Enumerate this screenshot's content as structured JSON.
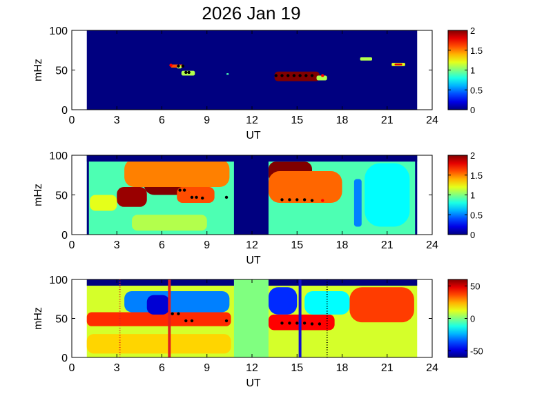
{
  "title": "2026 Jan 19",
  "chart_data": [
    {
      "type": "heatmap",
      "panel": 1,
      "xlabel": "UT",
      "ylabel": "mHz",
      "xlim": [
        0,
        24
      ],
      "ylim": [
        0,
        100
      ],
      "xticks": [
        0,
        3,
        6,
        9,
        12,
        15,
        18,
        21,
        24
      ],
      "yticks": [
        0,
        50,
        100
      ],
      "data_range_ut": [
        1.0,
        23.0
      ],
      "colorbar": {
        "min": 0,
        "max": 2,
        "ticks": [
          "0",
          "0.5",
          "1",
          "1.5",
          "2"
        ]
      },
      "background_value": 0,
      "blobs": [
        {
          "t0": 13.5,
          "t1": 16.5,
          "f0": 36,
          "f1": 48,
          "v": 2.0
        },
        {
          "t0": 13.6,
          "t1": 16.4,
          "f0": 38,
          "f1": 46,
          "v": 2.0
        },
        {
          "t0": 16.3,
          "t1": 17.0,
          "f0": 37,
          "f1": 43,
          "v": 1.1
        },
        {
          "t0": 7.3,
          "t1": 8.2,
          "f0": 43,
          "f1": 49,
          "v": 1.1
        },
        {
          "t0": 6.6,
          "t1": 7.4,
          "f0": 53,
          "f1": 57,
          "v": 1.6
        },
        {
          "t0": 7.0,
          "t1": 7.3,
          "f0": 52,
          "f1": 56,
          "v": 1.1
        },
        {
          "t0": 10.3,
          "t1": 10.45,
          "f0": 44,
          "f1": 46,
          "v": 0.9
        },
        {
          "t0": 19.2,
          "t1": 20.0,
          "f0": 62,
          "f1": 66,
          "v": 1.1
        },
        {
          "t0": 21.3,
          "t1": 22.2,
          "f0": 55,
          "f1": 59,
          "v": 1.2
        },
        {
          "t0": 21.5,
          "t1": 22.0,
          "f0": 56,
          "f1": 58,
          "v": 1.8
        }
      ],
      "markers": [
        {
          "t": 6.6,
          "f": 56,
          "color": "red"
        },
        {
          "t": 7.1,
          "f": 55,
          "color": "black"
        },
        {
          "t": 7.4,
          "f": 55,
          "color": "black"
        },
        {
          "t": 7.6,
          "f": 47,
          "color": "black"
        },
        {
          "t": 7.8,
          "f": 47,
          "color": "black"
        },
        {
          "t": 13.6,
          "f": 43,
          "color": "black"
        },
        {
          "t": 14.0,
          "f": 43,
          "color": "black"
        },
        {
          "t": 14.4,
          "f": 43,
          "color": "black"
        },
        {
          "t": 14.8,
          "f": 43,
          "color": "black"
        },
        {
          "t": 15.2,
          "f": 43,
          "color": "black"
        },
        {
          "t": 15.6,
          "f": 43,
          "color": "black"
        },
        {
          "t": 16.0,
          "f": 43,
          "color": "black"
        },
        {
          "t": 16.7,
          "f": 43,
          "color": "red"
        }
      ]
    },
    {
      "type": "heatmap",
      "panel": 2,
      "xlabel": "UT",
      "ylabel": "mHz",
      "xlim": [
        0,
        24
      ],
      "ylim": [
        0,
        100
      ],
      "xticks": [
        0,
        3,
        6,
        9,
        12,
        15,
        18,
        21,
        24
      ],
      "yticks": [
        0,
        50,
        100
      ],
      "data_range_ut": [
        1.0,
        23.0
      ],
      "gap_ut": [
        10.8,
        13.1
      ],
      "colorbar": {
        "min": 0,
        "max": 2,
        "ticks": [
          "0",
          "0.5",
          "1",
          "1.5",
          "2"
        ]
      },
      "background_value": 0.9,
      "blobs": [
        {
          "t0": 3.0,
          "t1": 5.0,
          "f0": 35,
          "f1": 60,
          "v": 1.95
        },
        {
          "t0": 4.8,
          "t1": 7.8,
          "f0": 50,
          "f1": 88,
          "v": 2.0
        },
        {
          "t0": 3.5,
          "t1": 10.5,
          "f0": 60,
          "f1": 95,
          "v": 1.5
        },
        {
          "t0": 7.0,
          "t1": 9.5,
          "f0": 40,
          "f1": 60,
          "v": 1.6
        },
        {
          "t0": 13.1,
          "t1": 16.0,
          "f0": 65,
          "f1": 92,
          "v": 2.0
        },
        {
          "t0": 13.1,
          "t1": 18.0,
          "f0": 40,
          "f1": 80,
          "v": 1.55
        },
        {
          "t0": 1.2,
          "t1": 3.0,
          "f0": 30,
          "f1": 50,
          "v": 1.2
        },
        {
          "t0": 18.8,
          "t1": 19.3,
          "f0": 10,
          "f1": 70,
          "v": 0.5
        },
        {
          "t0": 19.5,
          "t1": 22.5,
          "f0": 10,
          "f1": 90,
          "v": 0.75
        },
        {
          "t0": 4.0,
          "t1": 9.0,
          "f0": 5,
          "f1": 25,
          "v": 1.1
        }
      ],
      "markers": [
        {
          "t": 7.2,
          "f": 56,
          "color": "black"
        },
        {
          "t": 7.5,
          "f": 56,
          "color": "black"
        },
        {
          "t": 8.0,
          "f": 47,
          "color": "black"
        },
        {
          "t": 8.3,
          "f": 47,
          "color": "black"
        },
        {
          "t": 8.7,
          "f": 46,
          "color": "black"
        },
        {
          "t": 10.3,
          "f": 47,
          "color": "black"
        },
        {
          "t": 14.0,
          "f": 44,
          "color": "black"
        },
        {
          "t": 14.5,
          "f": 44,
          "color": "black"
        },
        {
          "t": 15.0,
          "f": 44,
          "color": "black"
        },
        {
          "t": 15.5,
          "f": 44,
          "color": "black"
        },
        {
          "t": 16.0,
          "f": 43,
          "color": "black"
        },
        {
          "t": 16.7,
          "f": 43,
          "color": "red"
        }
      ]
    },
    {
      "type": "heatmap",
      "panel": 3,
      "xlabel": "UT",
      "ylabel": "mHz",
      "xlim": [
        0,
        24
      ],
      "ylim": [
        0,
        100
      ],
      "xticks": [
        0,
        3,
        6,
        9,
        12,
        15,
        18,
        21,
        24
      ],
      "yticks": [
        0,
        50,
        100
      ],
      "data_range_ut": [
        1.0,
        23.0
      ],
      "gap_ut": [
        10.8,
        13.1
      ],
      "colorbar": {
        "min": -60,
        "max": 60,
        "ticks": [
          "50",
          "0",
          "-50"
        ]
      },
      "background_value": 10,
      "blobs": [
        {
          "t0": 1.0,
          "t1": 10.6,
          "f0": 40,
          "f1": 58,
          "v": 40
        },
        {
          "t0": 3.5,
          "t1": 10.5,
          "f0": 58,
          "f1": 85,
          "v": -30
        },
        {
          "t0": 5.0,
          "t1": 6.5,
          "f0": 55,
          "f1": 80,
          "v": -50
        },
        {
          "t0": 13.1,
          "t1": 15.0,
          "f0": 55,
          "f1": 90,
          "v": -40
        },
        {
          "t0": 13.1,
          "t1": 17.5,
          "f0": 35,
          "f1": 55,
          "v": 45
        },
        {
          "t0": 18.5,
          "t1": 22.8,
          "f0": 45,
          "f1": 90,
          "v": 38
        },
        {
          "t0": 1.0,
          "t1": 10.6,
          "f0": 5,
          "f1": 30,
          "v": 20
        },
        {
          "t0": 15.5,
          "t1": 18.5,
          "f0": 55,
          "f1": 85,
          "v": -15
        }
      ],
      "vlines": [
        {
          "t": 3.2,
          "color": "red",
          "style": "dotted"
        },
        {
          "t": 6.5,
          "color": "red",
          "style": "solid"
        },
        {
          "t": 15.2,
          "color": "blue",
          "style": "solid"
        },
        {
          "t": 17.0,
          "color": "black",
          "style": "dotted"
        }
      ],
      "markers": [
        {
          "t": 6.7,
          "f": 56,
          "color": "black"
        },
        {
          "t": 7.1,
          "f": 56,
          "color": "black"
        },
        {
          "t": 7.6,
          "f": 47,
          "color": "black"
        },
        {
          "t": 8.0,
          "f": 47,
          "color": "black"
        },
        {
          "t": 10.3,
          "f": 47,
          "color": "black"
        },
        {
          "t": 14.0,
          "f": 44,
          "color": "black"
        },
        {
          "t": 14.5,
          "f": 44,
          "color": "black"
        },
        {
          "t": 15.0,
          "f": 44,
          "color": "black"
        },
        {
          "t": 15.5,
          "f": 44,
          "color": "black"
        },
        {
          "t": 16.0,
          "f": 43,
          "color": "black"
        },
        {
          "t": 16.5,
          "f": 43,
          "color": "black"
        }
      ]
    }
  ]
}
